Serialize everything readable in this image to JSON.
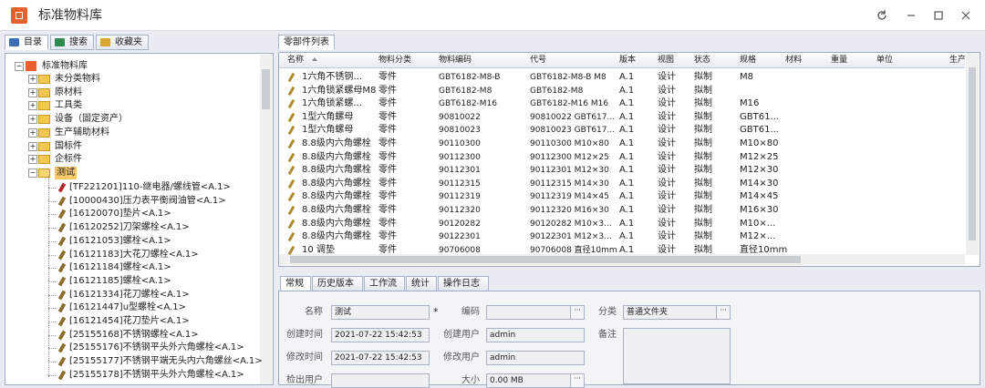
{
  "window": {
    "title": "标准物料库"
  },
  "left_tabs": [
    "目录",
    "搜索",
    "收藏夹"
  ],
  "tree": {
    "root": "标准物料库",
    "folders": [
      "未分类物料",
      "原材料",
      "工具类",
      "设备（固定资产）",
      "生产辅助材料",
      "国标件",
      "企标件",
      "测试"
    ],
    "items": [
      "[TF221201]110-继电器/螺线管<A.1>",
      "[10000430]压力表平衡阀油管<A.1>",
      "[16120070]垫片<A.1>",
      "[16120252]刀架螺栓<A.1>",
      "[16121053]螺栓<A.1>",
      "[16121183]大花刀螺栓<A.1>",
      "[16121184]螺栓<A.1>",
      "[16121185]螺栓<A.1>",
      "[16121334]花刀螺栓<A.1>",
      "[16121447]u型螺栓<A.1>",
      "[16121454]花刀垫片<A.1>",
      "[25155168]不锈钢螺栓<A.1>",
      "[25155176]不锈钢平头外六角螺栓<A.1>",
      "[25155177]不锈钢平端无头内六角螺丝<A.1>",
      "[25155178]不锈钢平头外六角螺栓<A.1>"
    ]
  },
  "list": {
    "tab": "零部件列表",
    "columns": [
      "名称",
      "物料分类",
      "物料编码",
      "代号",
      "版本",
      "视图",
      "状态",
      "规格",
      "材料",
      "重量",
      "单位",
      "生产类"
    ],
    "rows": [
      [
        "1六角不锈钢...",
        "零件",
        "GBT6182-M8-B",
        "GBT6182-M8-B M8",
        "A.1",
        "设计",
        "拟制",
        "M8"
      ],
      [
        "1六角锁紧螺母M8",
        "零件",
        "GBT6182-M8",
        "GBT6182-M8",
        "A.1",
        "设计",
        "拟制",
        null
      ],
      [
        "1六角锁紧螺...",
        "零件",
        "GBT6182-M16",
        "GBT6182-M16 M16",
        "A.1",
        "设计",
        "拟制",
        "M16"
      ],
      [
        "1型六角螺母",
        "零件",
        "90810022",
        "90810022 GBT617...",
        "A.1",
        "设计",
        "拟制",
        "GBT61..."
      ],
      [
        "1型六角螺母",
        "零件",
        "90810023",
        "90810023 GBT617...",
        "A.1",
        "设计",
        "拟制",
        "GBT61..."
      ],
      [
        "8.8级内六角螺栓",
        "零件",
        "90110300",
        "90110300 M10×80",
        "A.1",
        "设计",
        "拟制",
        "M10×80"
      ],
      [
        "8.8级内六角螺栓",
        "零件",
        "90112300",
        "90112300 M12×25",
        "A.1",
        "设计",
        "拟制",
        "M12×25"
      ],
      [
        "8.8级内六角螺栓",
        "零件",
        "90112301",
        "90112301 M12×30",
        "A.1",
        "设计",
        "拟制",
        "M12×30"
      ],
      [
        "8.8级内六角螺栓",
        "零件",
        "90112315",
        "90112315 M14×30",
        "A.1",
        "设计",
        "拟制",
        "M14×30"
      ],
      [
        "8.8级内六角螺栓",
        "零件",
        "90112319",
        "90112319 M14×45",
        "A.1",
        "设计",
        "拟制",
        "M14×45"
      ],
      [
        "8.8级内六角螺栓",
        "零件",
        "90112320",
        "90112320 M16×30",
        "A.1",
        "设计",
        "拟制",
        "M16×30"
      ],
      [
        "8.8级内六角螺栓",
        "零件",
        "90120282",
        "90120282 M10×3...",
        "A.1",
        "设计",
        "拟制",
        "M10×..."
      ],
      [
        "8.8级内六角螺栓",
        "零件",
        "90122301",
        "90122301 M12×3...",
        "A.1",
        "设计",
        "拟制",
        "M12×..."
      ],
      [
        "10 调垫",
        "零件",
        "90706008",
        "90706008 直径10mm",
        "A.1",
        "设计",
        "拟制",
        "直径10mm"
      ]
    ]
  },
  "detail": {
    "tabs": [
      "常规",
      "历史版本",
      "工作流",
      "统计",
      "操作日志"
    ],
    "required_mark": "*",
    "fields": [
      {
        "label": "名称",
        "value": "测试"
      },
      {
        "label": "编码"
      },
      {
        "label": "分类",
        "value": "普通文件夹"
      },
      {
        "label": "创建时间",
        "value": "2021-07-22 15:42:53"
      },
      {
        "label": "创建用户",
        "value": "admin"
      },
      {
        "label": "备注"
      },
      {
        "label": "修改时间",
        "value": "2021-07-22 15:42:53"
      },
      {
        "label": "修改用户",
        "value": "admin"
      },
      {
        "label": "检出用户"
      },
      {
        "label": "大小",
        "value": "0.00 MB"
      }
    ]
  }
}
